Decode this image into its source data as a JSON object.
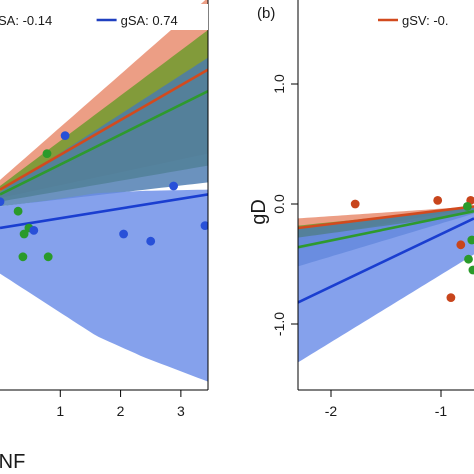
{
  "chart_data": [
    {
      "type": "scatter",
      "panel_label": "",
      "xlabel": "NF",
      "ylabel": "",
      "x_ticks": [
        1,
        2,
        3
      ],
      "x_tick_labels": [
        "1",
        "2",
        "3"
      ],
      "y_ticks": [],
      "y_tick_labels": [],
      "xlim": [
        0.0,
        3.45
      ],
      "ylim": [
        -1.55,
        1.7
      ],
      "grid": false,
      "legend": {
        "placement": "top",
        "entries": [
          {
            "label": "SA: -0.14",
            "color": "#6b6b6b",
            "show_line": false
          },
          {
            "label": "gSA: 0.74",
            "color": "#2040c0",
            "show_line": true
          }
        ]
      },
      "bands": [
        {
          "color": "#e8896a",
          "x": [
            0.0,
            3.45
          ],
          "lower": [
            0.05,
            0.42
          ],
          "upper": [
            0.2,
            1.72
          ],
          "fit": [
            0.12,
            1.12
          ]
        },
        {
          "color": "#6a9a2a",
          "x": [
            0.0,
            3.45
          ],
          "lower": [
            0.02,
            0.32
          ],
          "upper": [
            0.15,
            1.45
          ],
          "fit": [
            0.08,
            0.94
          ]
        },
        {
          "color": "#4a7ab0",
          "x": [
            0.0,
            3.45
          ],
          "lower": [
            -0.02,
            0.18
          ],
          "upper": [
            0.1,
            1.22
          ],
          "fit": [
            0.03,
            0.72
          ]
        },
        {
          "color": "#6a8ce8",
          "x": [
            0.0,
            0.8,
            1.6,
            2.4,
            3.45
          ],
          "lower": [
            -0.58,
            -0.84,
            -1.1,
            -1.28,
            -1.48
          ],
          "upper": [
            -0.02,
            0.03,
            0.09,
            0.11,
            0.12
          ],
          "fit": [
            -0.2,
            -0.13,
            -0.06,
            0.0,
            0.08
          ]
        }
      ],
      "fit_lines": [
        {
          "name": "SA",
          "color": "#d24a1e",
          "x": [
            0.0,
            3.45
          ],
          "y": [
            0.12,
            1.12
          ]
        },
        {
          "name": "",
          "color": "#2e9a2e",
          "x": [
            0.0,
            3.45
          ],
          "y": [
            0.08,
            0.94
          ]
        },
        {
          "name": "gSA",
          "color": "#1a3ed0",
          "x": [
            0.0,
            3.45
          ],
          "y": [
            -0.2,
            0.08
          ]
        }
      ],
      "points": [
        {
          "x": 1.08,
          "y": 0.57,
          "color": "#2850d8"
        },
        {
          "x": 0.78,
          "y": 0.42,
          "color": "#2a9a2a"
        },
        {
          "x": 0.0,
          "y": 0.02,
          "color": "#2850d8"
        },
        {
          "x": 0.3,
          "y": -0.06,
          "color": "#2a9a2a"
        },
        {
          "x": 0.48,
          "y": -0.2,
          "color": "#2a9a2a"
        },
        {
          "x": 0.56,
          "y": -0.22,
          "color": "#2850d8"
        },
        {
          "x": 0.4,
          "y": -0.25,
          "color": "#2a9a2a"
        },
        {
          "x": 0.38,
          "y": -0.44,
          "color": "#2a9a2a"
        },
        {
          "x": 0.8,
          "y": -0.44,
          "color": "#2a9a2a"
        },
        {
          "x": 2.05,
          "y": -0.25,
          "color": "#2850d8"
        },
        {
          "x": 2.5,
          "y": -0.31,
          "color": "#2850d8"
        },
        {
          "x": 2.88,
          "y": 0.15,
          "color": "#2850d8"
        },
        {
          "x": 3.4,
          "y": -0.18,
          "color": "#2850d8"
        }
      ]
    },
    {
      "type": "scatter",
      "panel_label": "(b)",
      "xlabel": "",
      "ylabel": "gD",
      "x_ticks": [
        -2,
        -1
      ],
      "x_tick_labels": [
        "-2",
        "-1"
      ],
      "y_ticks": [
        -1.0,
        0.0,
        1.0
      ],
      "y_tick_labels": [
        "-1.0",
        "0.0",
        "1.0"
      ],
      "xlim": [
        -2.3,
        -0.7
      ],
      "ylim": [
        -1.55,
        1.7
      ],
      "grid": false,
      "legend": {
        "placement": "top",
        "entries": [
          {
            "label": "gSV: -0.",
            "color": "#d24a1e",
            "show_line": true
          }
        ]
      },
      "bands": [
        {
          "color": "#e8896a",
          "x": [
            -2.3,
            -0.7
          ],
          "lower": [
            -0.3,
            -0.03
          ],
          "upper": [
            -0.12,
            -0.02
          ],
          "fit": [
            -0.22,
            -0.03
          ]
        },
        {
          "color": "#6a9a2a",
          "x": [
            -2.3,
            -0.7
          ],
          "lower": [
            -0.38,
            -0.05
          ],
          "upper": [
            -0.18,
            -0.03
          ],
          "fit": [
            -0.28,
            -0.05
          ]
        },
        {
          "color": "#4a7ab0",
          "x": [
            -2.3,
            -0.7
          ],
          "lower": [
            -0.52,
            -0.08
          ],
          "upper": [
            -0.2,
            -0.03
          ],
          "fit": [
            -0.36,
            -0.06
          ]
        },
        {
          "color": "#6a8ce8",
          "x": [
            -2.3,
            -0.7
          ],
          "lower": [
            -1.32,
            -0.42
          ],
          "upper": [
            -0.28,
            -0.08
          ],
          "fit": [
            -0.82,
            -0.15
          ]
        }
      ],
      "fit_lines": [
        {
          "name": "gSV",
          "color": "#d24a1e",
          "x": [
            -2.3,
            -0.7
          ],
          "y": [
            -0.2,
            -0.02
          ]
        },
        {
          "name": "",
          "color": "#2e9a2e",
          "x": [
            -2.3,
            -0.7
          ],
          "y": [
            -0.36,
            -0.06
          ]
        },
        {
          "name": "",
          "color": "#1a3ed0",
          "x": [
            -2.3,
            -0.7
          ],
          "y": [
            -0.82,
            -0.12
          ]
        }
      ],
      "points": [
        {
          "x": -1.78,
          "y": 0.0,
          "color": "#c8451c"
        },
        {
          "x": -1.03,
          "y": 0.03,
          "color": "#c8451c"
        },
        {
          "x": -0.73,
          "y": 0.03,
          "color": "#c8451c"
        },
        {
          "x": -0.76,
          "y": -0.02,
          "color": "#2a9a2a"
        },
        {
          "x": -0.82,
          "y": -0.34,
          "color": "#c8451c"
        },
        {
          "x": -0.91,
          "y": -0.78,
          "color": "#c8451c"
        },
        {
          "x": -0.72,
          "y": -0.3,
          "color": "#2a9a2a"
        },
        {
          "x": -0.75,
          "y": -0.46,
          "color": "#2a9a2a"
        },
        {
          "x": -0.71,
          "y": -0.55,
          "color": "#2a9a2a"
        }
      ]
    }
  ]
}
